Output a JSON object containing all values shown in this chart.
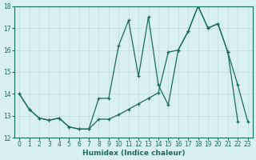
{
  "xlabel": "Humidex (Indice chaleur)",
  "x_all": [
    0,
    1,
    2,
    3,
    4,
    5,
    6,
    7,
    8,
    9,
    10,
    11,
    12,
    13,
    14,
    15,
    16,
    17,
    18,
    19,
    20,
    21,
    22,
    23
  ],
  "line1_x": [
    0,
    1,
    2,
    3,
    4,
    5,
    6,
    7,
    8,
    9,
    10,
    11,
    12,
    13,
    14,
    15,
    16,
    17,
    18,
    19,
    20,
    21,
    22,
    23
  ],
  "line1_y": [
    14.0,
    13.3,
    12.9,
    12.8,
    12.9,
    12.5,
    12.4,
    12.4,
    13.8,
    13.8,
    16.2,
    17.35,
    14.8,
    17.5,
    14.4,
    13.5,
    16.0,
    16.85,
    18.0,
    17.0,
    17.2,
    15.9,
    14.4,
    12.75
  ],
  "line2_x": [
    0,
    1,
    2,
    3,
    4,
    5,
    6,
    7,
    8,
    9,
    10,
    11,
    12,
    13,
    14,
    15,
    16,
    17,
    18,
    19,
    20,
    21,
    22
  ],
  "line2_y": [
    14.0,
    13.3,
    12.9,
    12.8,
    12.9,
    12.5,
    12.4,
    12.4,
    12.85,
    12.85,
    13.05,
    13.3,
    13.55,
    13.8,
    14.05,
    15.9,
    16.0,
    16.85,
    18.0,
    17.0,
    17.2,
    15.9,
    12.75
  ],
  "line_color": "#1a6b5a",
  "bg_color": "#d9f0f0",
  "grid_color": "#c0dada",
  "ylim": [
    12,
    18
  ],
  "xlim_min": -0.5,
  "xlim_max": 23.5,
  "yticks": [
    12,
    13,
    14,
    15,
    16,
    17,
    18
  ],
  "xticks": [
    0,
    1,
    2,
    3,
    4,
    5,
    6,
    7,
    8,
    9,
    10,
    11,
    12,
    13,
    14,
    15,
    16,
    17,
    18,
    19,
    20,
    21,
    22,
    23
  ]
}
